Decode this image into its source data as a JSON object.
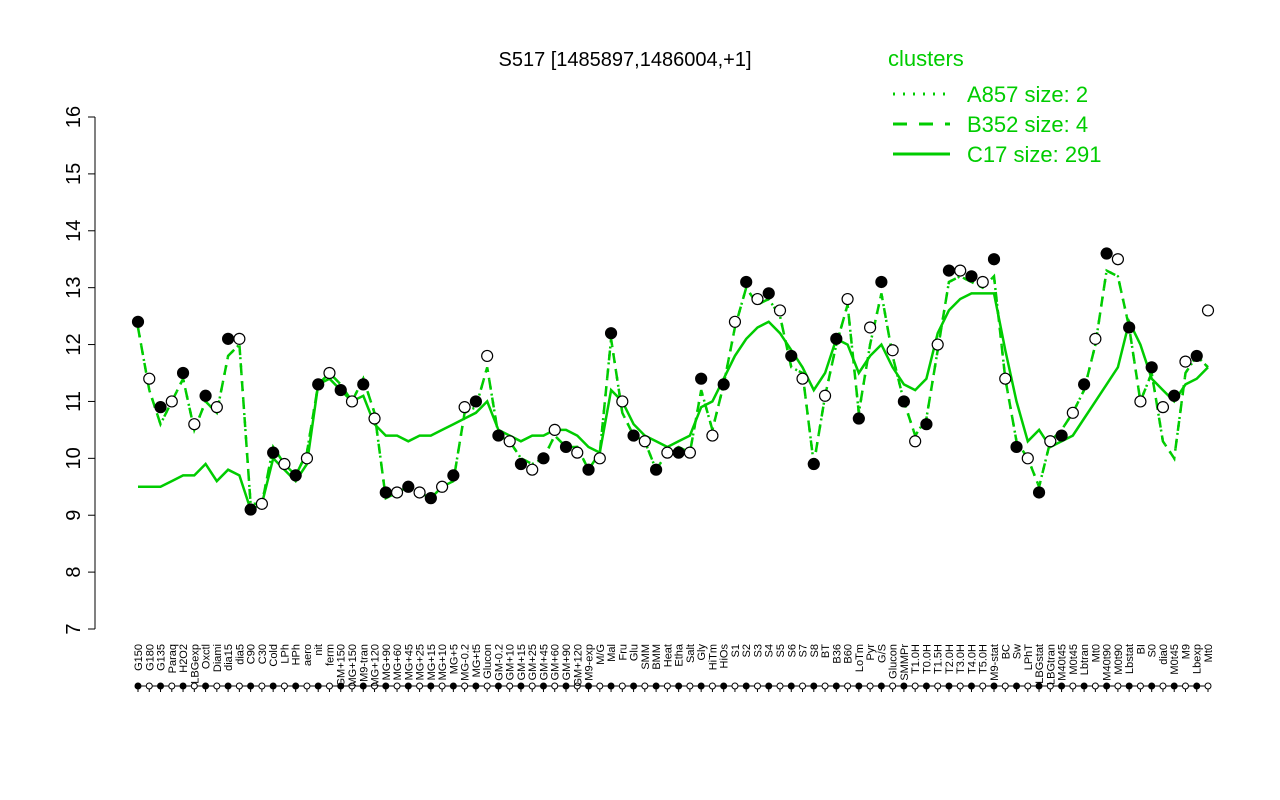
{
  "chart_data": {
    "type": "line",
    "title": "S517 [1485897,1486004,+1]",
    "xlabel": "",
    "ylabel": "",
    "ylim": [
      7,
      16
    ],
    "yticks": [
      7,
      8,
      9,
      10,
      11,
      12,
      13,
      14,
      15,
      16
    ],
    "legend": {
      "title": "clusters",
      "position": "top-right",
      "color": "#00cc00",
      "entries": [
        {
          "label": "A857 size: 2",
          "style": "dotted"
        },
        {
          "label": "B352 size: 4",
          "style": "dashed"
        },
        {
          "label": "C17 size: 291",
          "style": "solid"
        }
      ]
    },
    "x_tick_labels": [
      "G150",
      "G180",
      "G135",
      "Paraq",
      "H2O2",
      "LBGexp",
      "Oxctl",
      "Diami",
      "dia15",
      "dia5",
      "C90",
      "C30",
      "Cold",
      "LPh",
      "HPh",
      "aero",
      "nit",
      "ferm",
      "GM+150",
      "MG+150",
      "M9-tran",
      "MG+120",
      "MG+90",
      "MG+60",
      "MG+45",
      "MG+25",
      "MG+15",
      "MG+10",
      "MG+5",
      "MG-0.2",
      "MG+t5",
      "Glucon",
      "GM-0.2",
      "GM+10",
      "GM+15",
      "GM+25",
      "GM+45",
      "GM+60",
      "GM+90",
      "GM+120",
      "M9-exp",
      "M/G",
      "Mal",
      "Fru",
      "Glu",
      "SMM",
      "BMM",
      "Heat",
      "Etha",
      "Salt",
      "Gly",
      "HiTm",
      "HiOs",
      "S1",
      "S2",
      "S3",
      "S4",
      "S5",
      "S6",
      "S7",
      "S8",
      "BT",
      "B36",
      "B60",
      "LoTm",
      "Pyr",
      "G/S",
      "Glucon",
      "SMMPr",
      "T1.0H",
      "T0.0H",
      "T1.5H",
      "T2.0H",
      "T3.0H",
      "T4.0H",
      "T5.0H",
      "M9-stat",
      "BC",
      "Sw",
      "LPhT",
      "LBGstat",
      "LBGtran",
      "M40t45",
      "M0t45",
      "Lbtran",
      "Mt0",
      "M40t90",
      "M0t90",
      "Lbstat",
      "BI",
      "S0",
      "dia0",
      "M0t45",
      "M9",
      "Lbexp",
      "Mt0"
    ],
    "series": [
      {
        "name": "C17 size: 291",
        "style": "solid",
        "values": [
          9.5,
          9.5,
          9.5,
          9.6,
          9.7,
          9.7,
          9.9,
          9.6,
          9.8,
          9.7,
          9.1,
          9.2,
          10.0,
          9.8,
          9.6,
          9.9,
          11.3,
          11.4,
          11.2,
          11.0,
          11.1,
          10.6,
          10.4,
          10.4,
          10.3,
          10.4,
          10.4,
          10.5,
          10.6,
          10.7,
          10.8,
          11.0,
          10.5,
          10.4,
          10.3,
          10.4,
          10.4,
          10.5,
          10.5,
          10.4,
          10.2,
          10.1,
          11.2,
          11.0,
          10.6,
          10.4,
          10.3,
          10.2,
          10.3,
          10.4,
          10.9,
          11.0,
          11.4,
          11.8,
          12.1,
          12.3,
          12.4,
          12.2,
          11.9,
          11.6,
          11.2,
          11.5,
          12.1,
          12.0,
          11.5,
          11.8,
          12.0,
          11.6,
          11.3,
          11.2,
          11.4,
          12.2,
          12.6,
          12.8,
          12.9,
          12.9,
          12.9,
          11.9,
          11.0,
          10.3,
          10.5,
          10.2,
          10.3,
          10.4,
          10.7,
          11.0,
          11.3,
          11.6,
          12.4,
          12.0,
          11.4,
          11.2,
          11.0,
          11.3,
          11.4,
          11.6
        ]
      },
      {
        "name": "B352 size: 4",
        "style": "dashed",
        "values": [
          12.3,
          11.2,
          10.6,
          11.0,
          11.4,
          10.5,
          11.0,
          10.8,
          11.8,
          12.0,
          9.2,
          9.2,
          10.2,
          9.9,
          9.7,
          10.1,
          11.3,
          11.5,
          11.3,
          11.0,
          11.4,
          10.8,
          9.3,
          9.4,
          9.5,
          9.4,
          9.3,
          9.5,
          9.6,
          10.8,
          10.9,
          11.6,
          10.4,
          10.3,
          10.0,
          9.9,
          10.0,
          10.4,
          10.2,
          10.2,
          9.8,
          10.1,
          12.1,
          10.8,
          10.4,
          10.3,
          9.8,
          10.1,
          10.2,
          10.1,
          11.2,
          10.5,
          11.3,
          12.3,
          13.0,
          12.7,
          12.8,
          12.5,
          11.6,
          11.5,
          9.9,
          11.1,
          12.0,
          12.7,
          10.8,
          12.0,
          12.9,
          11.8,
          11.0,
          10.4,
          10.7,
          11.9,
          13.1,
          13.2,
          13.1,
          13.0,
          13.2,
          11.4,
          10.3,
          10.0,
          9.5,
          10.3,
          10.5,
          10.8,
          11.2,
          12.0,
          13.3,
          13.2,
          12.3,
          11.0,
          11.5,
          10.3,
          10.0,
          11.5,
          11.8,
          11.6
        ]
      },
      {
        "name": "A857 size: 2",
        "style": "dotted",
        "values": [
          12.3,
          11.2,
          10.6,
          11.0,
          11.4,
          10.5,
          11.0,
          10.8,
          11.8,
          12.0,
          9.2,
          9.2,
          10.2,
          9.9,
          9.7,
          10.1,
          11.3,
          11.5,
          11.3,
          11.0,
          11.4,
          10.8,
          9.3,
          9.4,
          9.5,
          9.4,
          9.3,
          9.5,
          9.6,
          10.8,
          10.9,
          11.6,
          10.4,
          10.3,
          10.0,
          9.9,
          10.0,
          10.4,
          10.2,
          10.2,
          9.8,
          10.1,
          12.1,
          10.8,
          10.4,
          10.3,
          9.8,
          10.1,
          10.2,
          10.1,
          11.2,
          10.5,
          11.3,
          12.3,
          13.0,
          12.7,
          12.8,
          12.5,
          11.6,
          11.5,
          9.9,
          11.1,
          12.0,
          12.7,
          10.8,
          12.0,
          12.9,
          11.8,
          11.0,
          10.4,
          10.7,
          11.9,
          13.1,
          13.2,
          13.1,
          13.0,
          13.2,
          11.4,
          10.3,
          10.0,
          9.5,
          10.3,
          10.5,
          10.8,
          11.2,
          12.0,
          13.3,
          13.2,
          12.3,
          11.0,
          11.5,
          10.3,
          10.0,
          11.5,
          11.8,
          11.6
        ]
      }
    ],
    "points": {
      "values": [
        12.4,
        11.4,
        10.9,
        11.0,
        11.5,
        10.6,
        11.1,
        10.9,
        12.1,
        12.1,
        9.1,
        9.2,
        10.1,
        9.9,
        9.7,
        10.0,
        11.3,
        11.5,
        11.2,
        11.0,
        11.3,
        10.7,
        9.4,
        9.4,
        9.5,
        9.4,
        9.3,
        9.5,
        9.7,
        10.9,
        11.0,
        11.8,
        10.4,
        10.3,
        9.9,
        9.8,
        10.0,
        10.5,
        10.2,
        10.1,
        9.8,
        10.0,
        12.2,
        11.0,
        10.4,
        10.3,
        9.8,
        10.1,
        10.1,
        10.1,
        11.4,
        10.4,
        11.3,
        12.4,
        13.1,
        12.8,
        12.9,
        12.6,
        11.8,
        11.4,
        9.9,
        11.1,
        12.1,
        12.8,
        10.7,
        12.3,
        13.1,
        11.9,
        11.0,
        10.3,
        10.6,
        12.0,
        13.3,
        13.3,
        13.2,
        13.1,
        13.5,
        11.4,
        10.2,
        10.0,
        9.4,
        10.3,
        10.4,
        10.8,
        11.3,
        12.1,
        13.6,
        13.5,
        12.3,
        11.0,
        11.6,
        10.9,
        11.1,
        11.7,
        11.8,
        12.6
      ]
    }
  }
}
